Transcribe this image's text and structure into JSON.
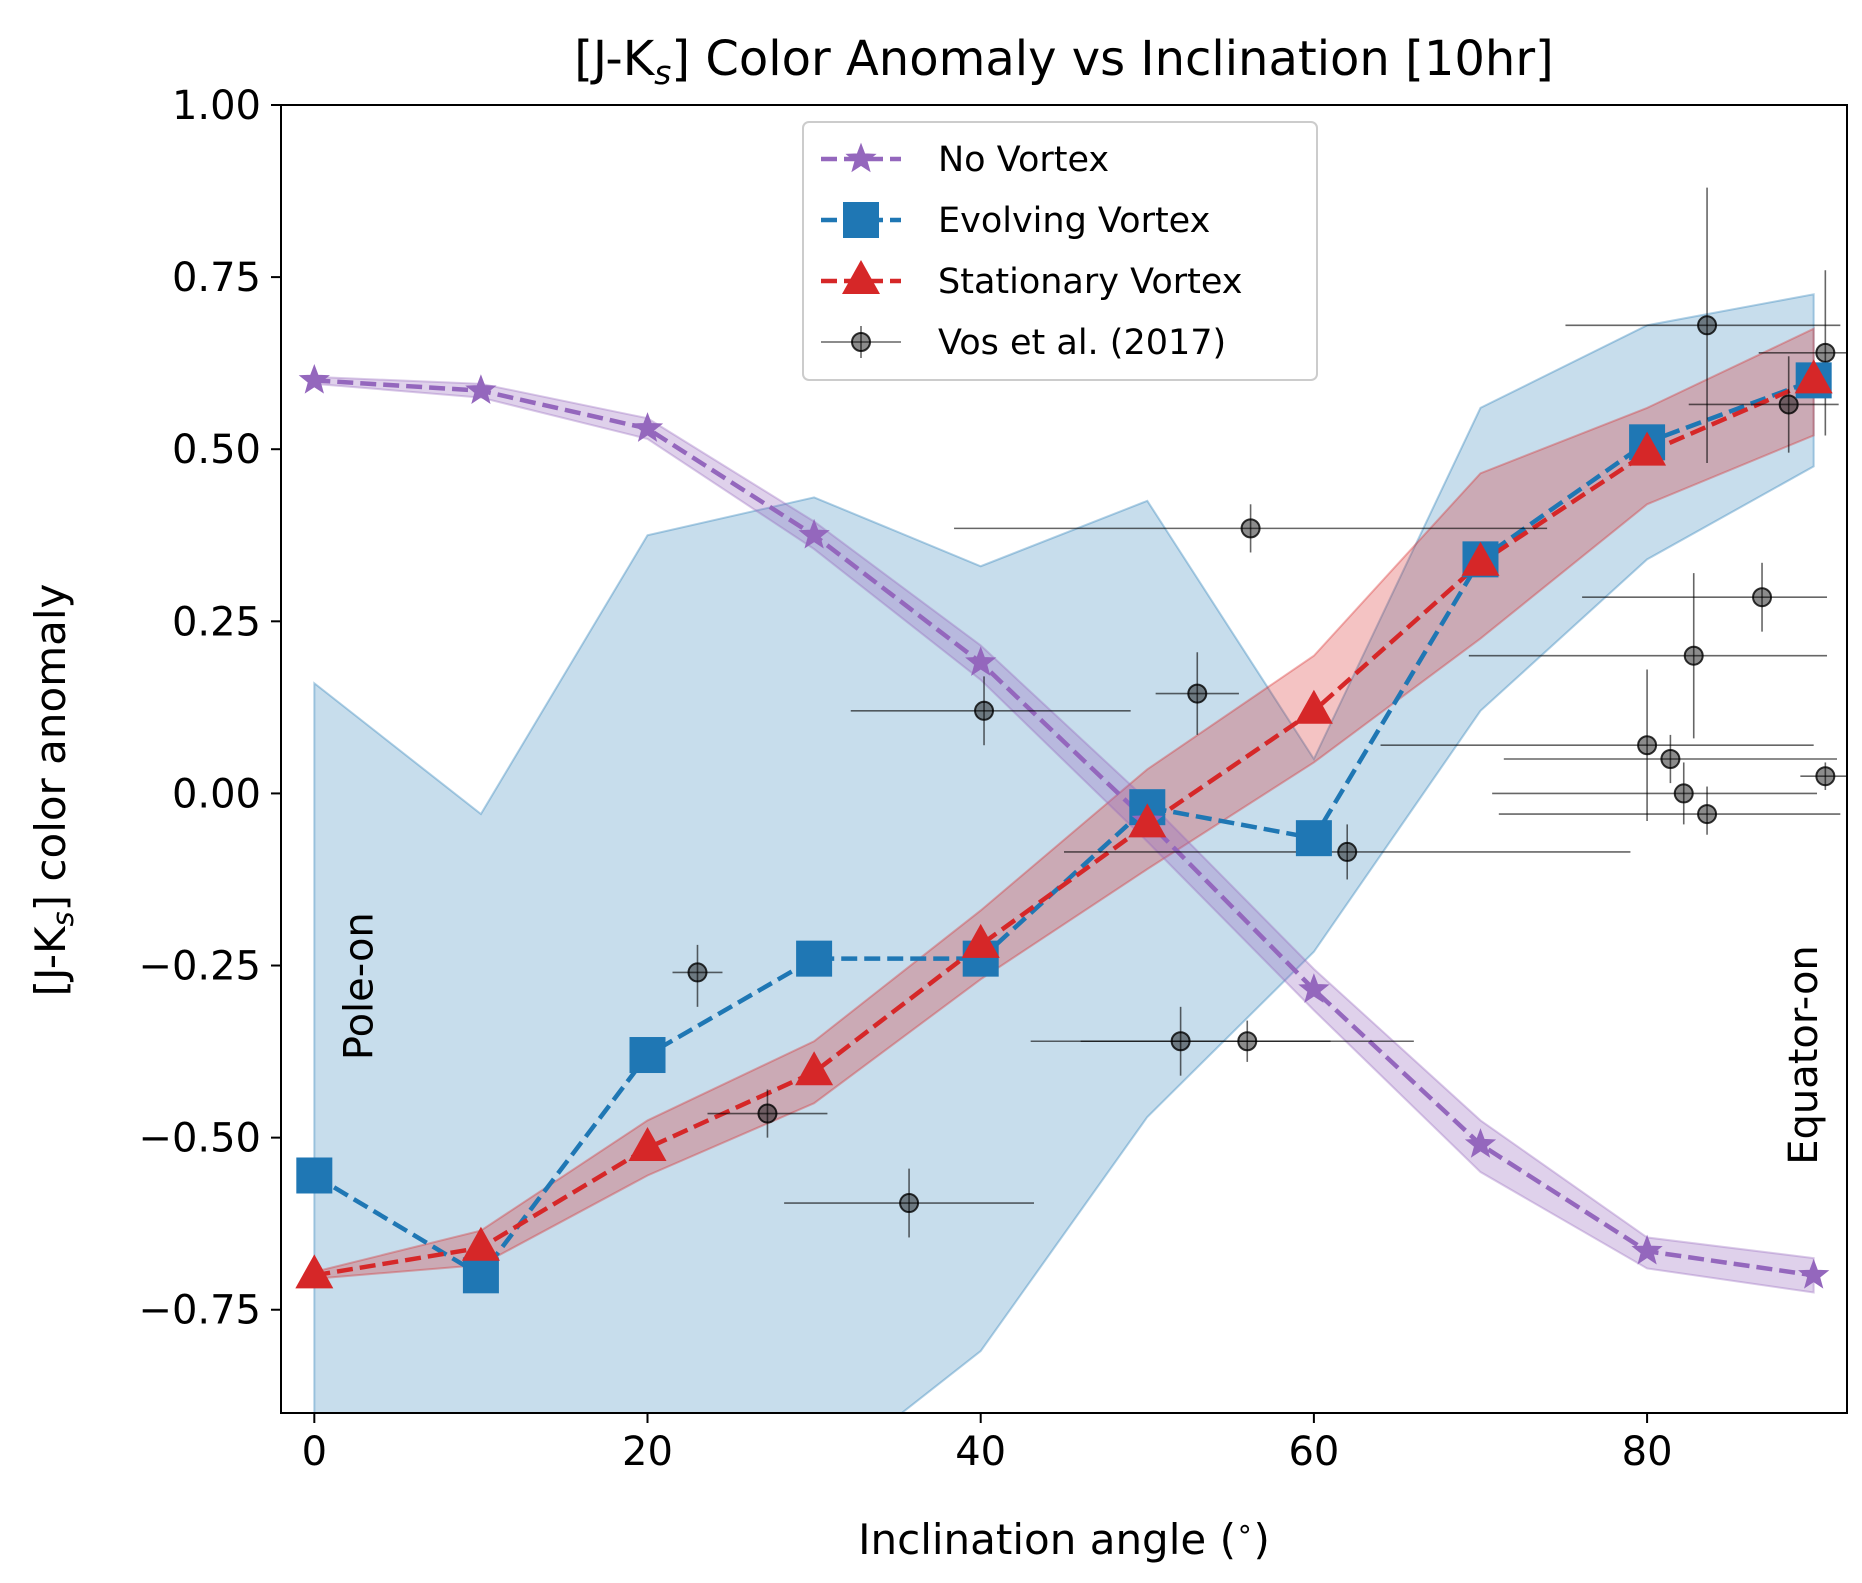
{
  "chart_data": {
    "type": "line",
    "title_main": "[J-K",
    "title_sub": "s",
    "title_rest": "] Color Anomaly vs Inclination [10hr]",
    "xlabel": "Inclination angle ($^\\circ$)",
    "xlabel_main": "Inclination angle (",
    "xlabel_deg": "∘",
    "xlabel_end": ")",
    "ylabel_main": "[J-K",
    "ylabel_sub": "s",
    "ylabel_rest": "] color anomaly",
    "xlim": [
      -2,
      92
    ],
    "ylim": [
      -0.9,
      1.0
    ],
    "grid": false,
    "legend_position": "top-center",
    "xticks": [
      0,
      20,
      40,
      60,
      80
    ],
    "xtick_labels": [
      "0",
      "20",
      "40",
      "60",
      "80"
    ],
    "yticks": [
      -0.75,
      -0.5,
      -0.25,
      0.0,
      0.25,
      0.5,
      0.75,
      1.0
    ],
    "ytick_labels": [
      "−0.75",
      "−0.50",
      "−0.25",
      "0.00",
      "0.25",
      "0.50",
      "0.75",
      "1.00"
    ],
    "annotations": [
      {
        "text": "Pole-on",
        "x": 3.5,
        "y": -0.28
      },
      {
        "text": "Equator-on",
        "x": 90.2,
        "y": -0.38
      }
    ],
    "x": [
      0,
      10,
      20,
      30,
      40,
      50,
      60,
      70,
      80,
      90
    ],
    "series": [
      {
        "name": "No Vortex",
        "color": "#9467bd",
        "marker": "star",
        "values": [
          0.6,
          0.585,
          0.53,
          0.375,
          0.19,
          -0.04,
          -0.285,
          -0.51,
          -0.665,
          -0.7
        ],
        "band_upper": [
          0.605,
          0.595,
          0.545,
          0.395,
          0.215,
          -0.01,
          -0.255,
          -0.475,
          -0.645,
          -0.675
        ],
        "band_lower": [
          0.595,
          0.575,
          0.515,
          0.355,
          0.165,
          -0.07,
          -0.315,
          -0.55,
          -0.69,
          -0.725
        ]
      },
      {
        "name": "Evolving Vortex",
        "color": "#1f77b4",
        "marker": "square",
        "values": [
          -0.555,
          -0.7,
          -0.38,
          -0.24,
          -0.24,
          -0.02,
          -0.065,
          0.34,
          0.51,
          0.6
        ],
        "band_upper": [
          0.16,
          -0.03,
          0.375,
          0.43,
          0.33,
          0.425,
          0.05,
          0.56,
          0.68,
          0.725
        ],
        "band_lower": [
          -0.9,
          -1.2,
          -1.2,
          -1.0,
          -0.81,
          -0.47,
          -0.23,
          0.12,
          0.34,
          0.475
        ]
      },
      {
        "name": "Stationary Vortex",
        "color": "#d62728",
        "marker": "triangle",
        "values": [
          -0.7,
          -0.66,
          -0.515,
          -0.405,
          -0.22,
          -0.045,
          0.12,
          0.335,
          0.495,
          0.6
        ],
        "band_upper": [
          -0.695,
          -0.635,
          -0.475,
          -0.36,
          -0.17,
          0.035,
          0.2,
          0.465,
          0.56,
          0.675
        ],
        "band_lower": [
          -0.705,
          -0.685,
          -0.555,
          -0.45,
          -0.27,
          -0.11,
          0.045,
          0.225,
          0.42,
          0.52
        ]
      }
    ],
    "observations": {
      "name": "Vos et al. (2017)",
      "color": "#000000",
      "points": [
        {
          "x": 23.0,
          "y": -0.26,
          "xerr": [
            1.5,
            1.5
          ],
          "yerr": [
            0.05,
            0.04
          ]
        },
        {
          "x": 27.2,
          "y": -0.465,
          "xerr": [
            3.6,
            3.6
          ],
          "yerr": [
            0.035,
            0.035
          ]
        },
        {
          "x": 35.7,
          "y": -0.595,
          "xerr": [
            7.5,
            7.5
          ],
          "yerr": [
            0.05,
            0.05
          ]
        },
        {
          "x": 40.2,
          "y": 0.12,
          "xerr": [
            8.0,
            8.8
          ],
          "yerr": [
            0.05,
            0.05
          ]
        },
        {
          "x": 52.0,
          "y": -0.36,
          "xerr": [
            9.0,
            9.0
          ],
          "yerr": [
            0.05,
            0.05
          ]
        },
        {
          "x": 53.0,
          "y": 0.145,
          "xerr": [
            2.5,
            2.5
          ],
          "yerr": [
            0.06,
            0.06
          ]
        },
        {
          "x": 56.0,
          "y": -0.36,
          "xerr": [
            10.0,
            10.0
          ],
          "yerr": [
            0.03,
            0.03
          ]
        },
        {
          "x": 56.2,
          "y": 0.385,
          "xerr": [
            17.8,
            17.8
          ],
          "yerr": [
            0.035,
            0.035
          ]
        },
        {
          "x": 62.0,
          "y": -0.085,
          "xerr": [
            17.0,
            17.0
          ],
          "yerr": [
            0.04,
            0.04
          ]
        },
        {
          "x": 80.0,
          "y": 0.07,
          "xerr": [
            16.0,
            10.0
          ],
          "yerr": [
            0.11,
            0.11
          ]
        },
        {
          "x": 81.4,
          "y": 0.05,
          "xerr": [
            10.0,
            10.0
          ],
          "yerr": [
            0.035,
            0.035
          ]
        },
        {
          "x": 82.2,
          "y": 0.0,
          "xerr": [
            11.5,
            8.0
          ],
          "yerr": [
            0.045,
            0.045
          ]
        },
        {
          "x": 82.8,
          "y": 0.2,
          "xerr": [
            13.5,
            8.0
          ],
          "yerr": [
            0.12,
            0.12
          ]
        },
        {
          "x": 83.6,
          "y": 0.68,
          "xerr": [
            8.5,
            8.0
          ],
          "yerr": [
            0.2,
            0.2
          ]
        },
        {
          "x": 83.6,
          "y": -0.03,
          "xerr": [
            12.5,
            8.0
          ],
          "yerr": [
            0.03,
            0.04
          ]
        },
        {
          "x": 86.9,
          "y": 0.285,
          "xerr": [
            10.8,
            3.9
          ],
          "yerr": [
            0.05,
            0.05
          ]
        },
        {
          "x": 88.5,
          "y": 0.565,
          "xerr": [
            6.0,
            3.0
          ],
          "yerr": [
            0.07,
            0.07
          ]
        },
        {
          "x": 90.7,
          "y": 0.64,
          "xerr": [
            4.0,
            4.0
          ],
          "yerr": [
            0.12,
            0.12
          ]
        },
        {
          "x": 90.7,
          "y": 0.025,
          "xerr": [
            1.5,
            1.5
          ],
          "yerr": [
            0.02,
            0.02
          ]
        }
      ]
    }
  }
}
